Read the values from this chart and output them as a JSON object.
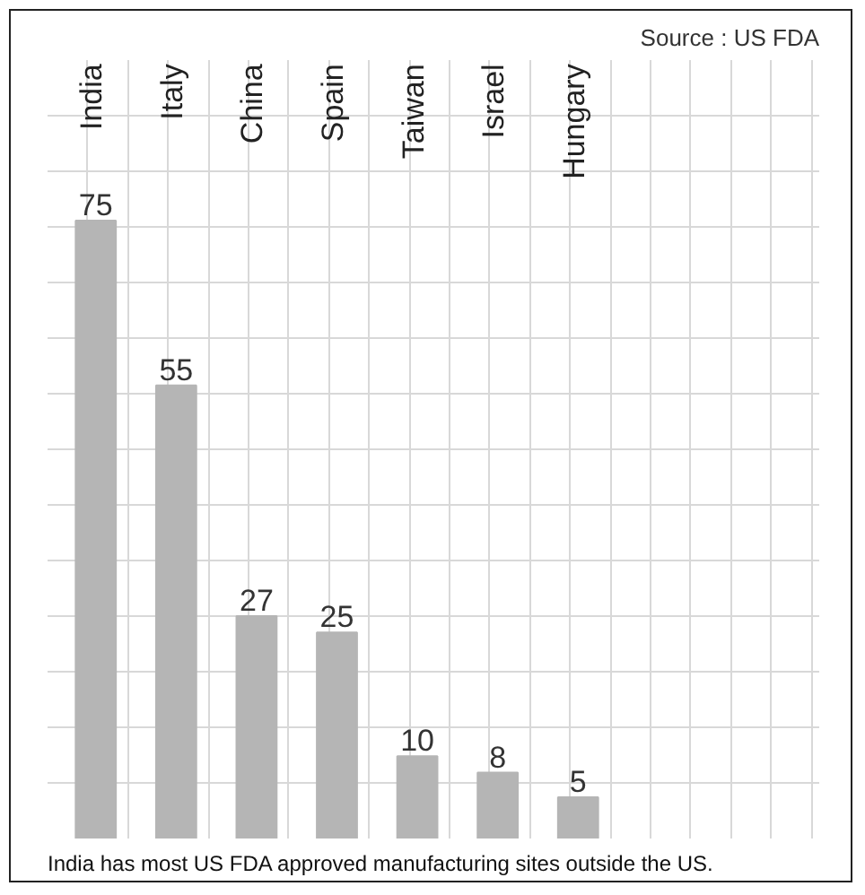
{
  "chart_data": {
    "type": "bar",
    "categories": [
      "India",
      "Italy",
      "China",
      "Spain",
      "Taiwan",
      "Israel",
      "Hungary"
    ],
    "values": [
      75,
      55,
      27,
      25,
      10,
      8,
      5
    ],
    "color": "#b5b5b5",
    "data_labels": true,
    "relative": false,
    "grid": true,
    "annotations": [
      "Source : US FDA",
      "India has most US FDA approved manufacturing sites outside the US."
    ]
  }
}
